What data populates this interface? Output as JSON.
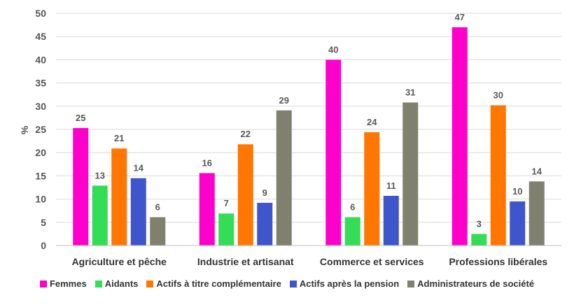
{
  "chart_data": {
    "type": "bar",
    "title": "",
    "xlabel": "",
    "ylabel": "%",
    "ylim": [
      0,
      50
    ],
    "yticks": [
      0,
      5,
      10,
      15,
      20,
      25,
      30,
      35,
      40,
      45,
      50
    ],
    "grid": true,
    "legend_position": "bottom",
    "categories": [
      "Agriculture et pêche",
      "Industrie et artisanat",
      "Commerce et services",
      "Professions libérales"
    ],
    "series": [
      {
        "name": "Femmes",
        "color": "#FF00CC",
        "values": [
          25.3,
          15.6,
          40.0,
          47.0
        ],
        "labels": [
          "25",
          "16",
          "40",
          "47"
        ]
      },
      {
        "name": "Aidants",
        "color": "#33DD55",
        "values": [
          12.9,
          6.9,
          6.1,
          2.5
        ],
        "labels": [
          "13",
          "7",
          "6",
          "3"
        ]
      },
      {
        "name": "Actifs à titre complémentaire",
        "color": "#FF7700",
        "values": [
          20.9,
          21.8,
          24.4,
          30.2
        ],
        "labels": [
          "21",
          "22",
          "24",
          "30"
        ]
      },
      {
        "name": "Actifs après la pension",
        "color": "#3F55CC",
        "values": [
          14.5,
          9.2,
          10.7,
          9.5
        ],
        "labels": [
          "14",
          "9",
          "11",
          "10"
        ]
      },
      {
        "name": "Administrateurs de société",
        "color": "#7F806E",
        "values": [
          6.1,
          29.1,
          30.8,
          13.8
        ],
        "labels": [
          "6",
          "29",
          "31",
          "14"
        ]
      }
    ]
  }
}
